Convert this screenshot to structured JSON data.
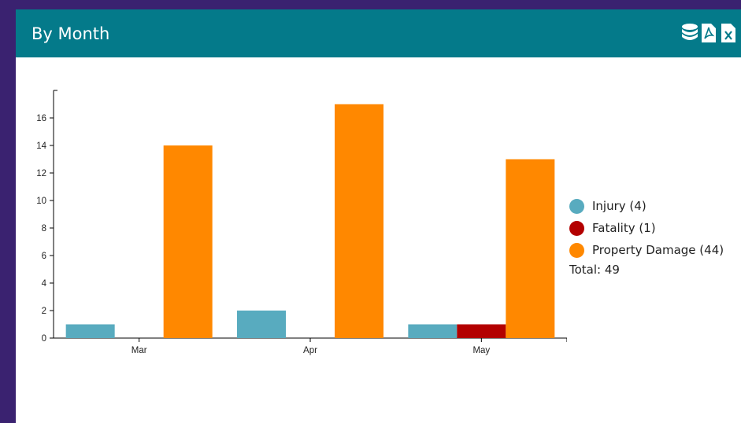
{
  "panel": {
    "title": "By Month",
    "icons": [
      "database-icon",
      "pdf-export-icon",
      "excel-export-icon"
    ]
  },
  "colors": {
    "background": "#3a2270",
    "header": "#047a8a",
    "injury": "#58abbf",
    "fatality": "#b30000",
    "property_damage": "#ff8800"
  },
  "chart_data": {
    "type": "bar",
    "categories": [
      "Mar",
      "Apr",
      "May"
    ],
    "series": [
      {
        "name": "Injury",
        "color": "#58abbf",
        "values": [
          1,
          2,
          1
        ]
      },
      {
        "name": "Fatality",
        "color": "#b30000",
        "values": [
          0,
          0,
          1
        ]
      },
      {
        "name": "Property Damage",
        "color": "#ff8800",
        "values": [
          14,
          17,
          13
        ]
      }
    ],
    "ylim": [
      0,
      18
    ],
    "yticks": [
      0,
      2,
      4,
      6,
      8,
      10,
      12,
      14,
      16
    ],
    "legend_position": "right",
    "grid": false
  },
  "legend": {
    "items": [
      {
        "label": "Injury (4)",
        "color": "#58abbf"
      },
      {
        "label": "Fatality (1)",
        "color": "#b30000"
      },
      {
        "label": "Property Damage (44)",
        "color": "#ff8800"
      }
    ],
    "total": "Total: 49"
  }
}
